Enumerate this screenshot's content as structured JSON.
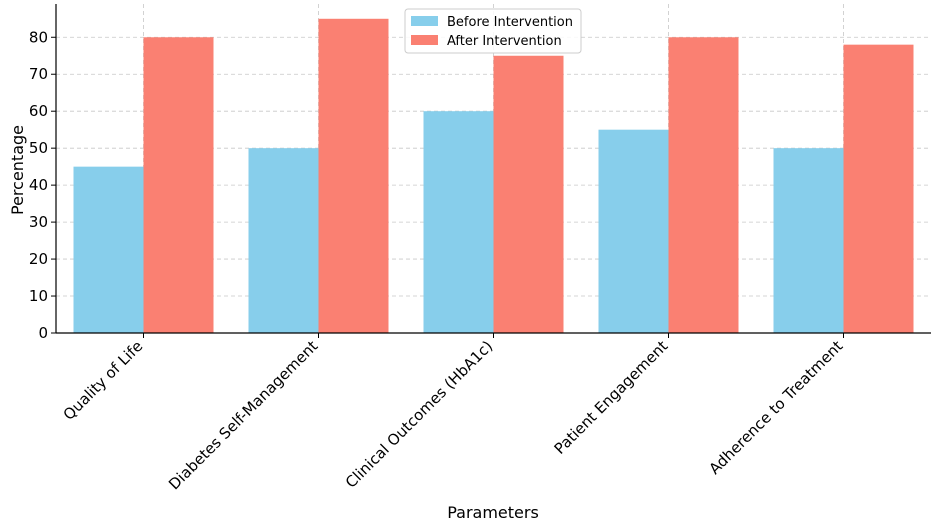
{
  "chart_data": {
    "type": "bar",
    "title": "",
    "xlabel": "Parameters",
    "ylabel": "Percentage",
    "categories": [
      "Quality of Life",
      "Diabetes Self-Management",
      "Clinical Outcomes (HbA1c)",
      "Patient Engagement",
      "Adherence to Treatment"
    ],
    "series": [
      {
        "name": "Before Intervention",
        "values": [
          45,
          50,
          60,
          55,
          50
        ],
        "color": "#87CEEB"
      },
      {
        "name": "After Intervention",
        "values": [
          80,
          85,
          75,
          80,
          78
        ],
        "color": "#FA8072"
      }
    ],
    "ylim": [
      0,
      89
    ],
    "yticks": [
      0,
      10,
      20,
      30,
      40,
      50,
      60,
      70,
      80
    ],
    "grid": true,
    "legend_position": "top-center"
  }
}
